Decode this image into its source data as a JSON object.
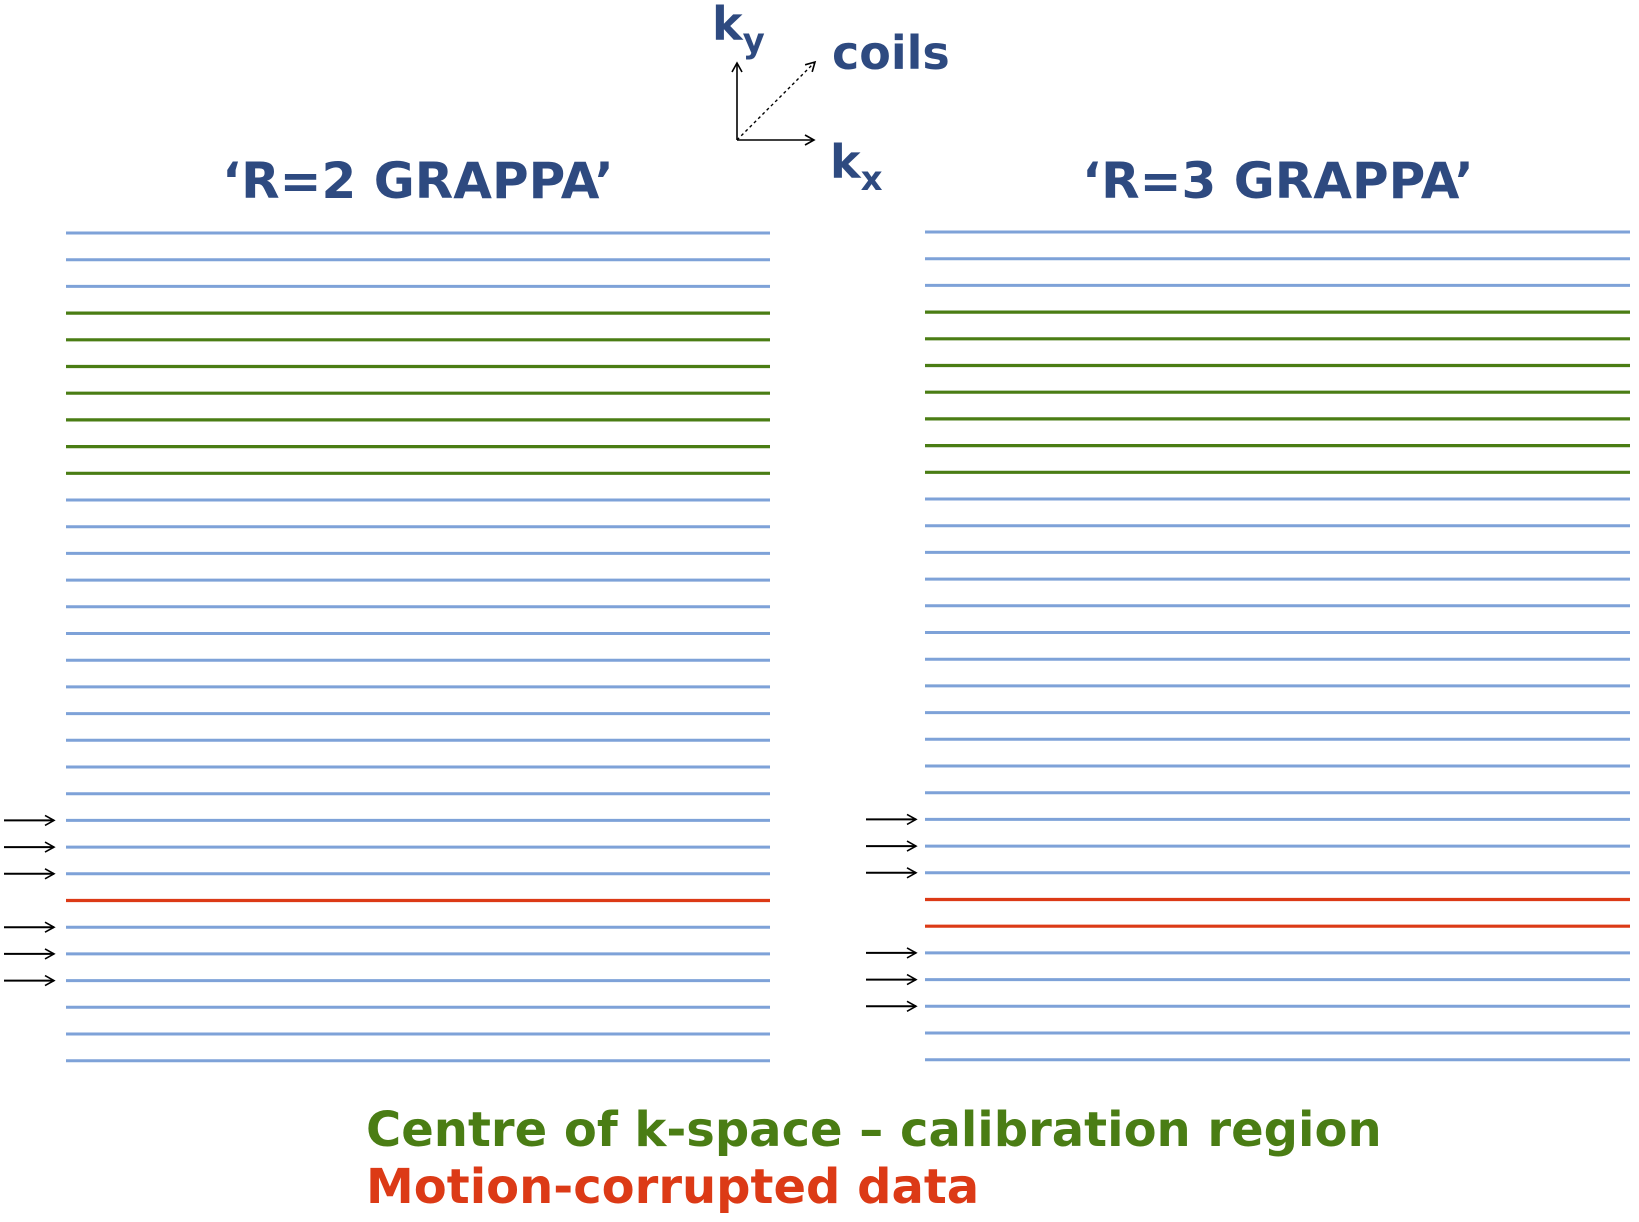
{
  "axes": {
    "ky_base": "k",
    "ky_sub": "y",
    "kx_base": "k",
    "kx_sub": "x",
    "coils_label": "coils"
  },
  "panels": [
    {
      "title": "‘R=2 GRAPPA’",
      "line_types": [
        "b",
        "b",
        "b",
        "g",
        "g",
        "g",
        "g",
        "g",
        "g",
        "g",
        "b",
        "b",
        "b",
        "b",
        "b",
        "b",
        "b",
        "b",
        "b",
        "b",
        "b",
        "b",
        "b",
        "b",
        "b",
        "r",
        "b",
        "b",
        "b",
        "b",
        "b",
        "b"
      ],
      "arrows": [
        22,
        23,
        24,
        26,
        27,
        28
      ]
    },
    {
      "title": "‘R=3 GRAPPA’",
      "line_types": [
        "b",
        "b",
        "b",
        "g",
        "g",
        "g",
        "g",
        "g",
        "g",
        "g",
        "b",
        "b",
        "b",
        "b",
        "b",
        "b",
        "b",
        "b",
        "b",
        "b",
        "b",
        "b",
        "b",
        "b",
        "b",
        "r",
        "r",
        "b",
        "b",
        "b",
        "b",
        "b"
      ],
      "arrows": [
        22,
        23,
        24,
        27,
        28,
        29
      ]
    }
  ],
  "legend": {
    "calibration": "Centre of k-space – calibration region",
    "motion": "Motion-corrupted data"
  },
  "colors": {
    "text_blue": "#2e4a80",
    "line_blue": "#7ea2d8",
    "line_green": "#4a7d14",
    "line_red": "#dc3a16",
    "legend_green": "#4a7d14",
    "legend_red": "#dc3a16",
    "arrow_black": "#000000"
  }
}
